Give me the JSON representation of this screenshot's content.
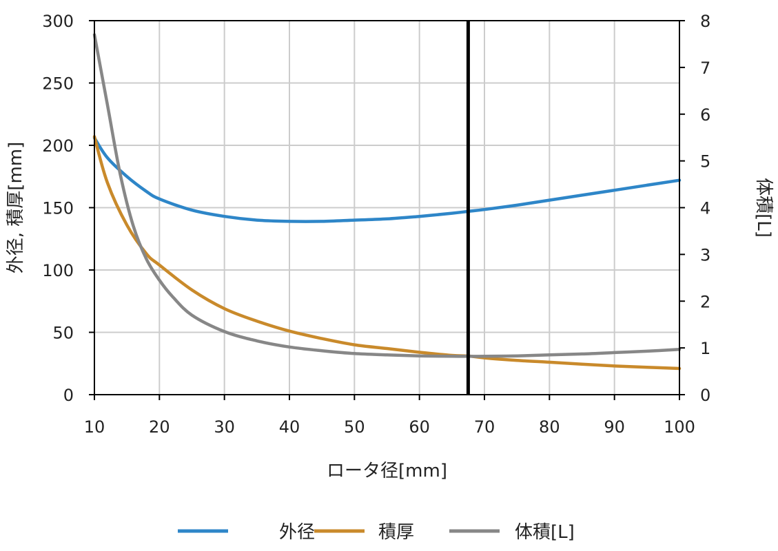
{
  "chart_data": {
    "type": "line",
    "xlabel": "ロータ径[mm]",
    "ylabel_left": "外径, 積厚[mm]",
    "ylabel_right": "体積[L]",
    "xlim": [
      10,
      100
    ],
    "ylim_left": [
      0,
      300
    ],
    "ylim_right": [
      0,
      8
    ],
    "x_ticks": [
      10,
      20,
      30,
      40,
      50,
      60,
      70,
      80,
      90,
      100
    ],
    "y_left_ticks": [
      0,
      50,
      100,
      150,
      200,
      250,
      300
    ],
    "y_right_ticks": [
      0,
      1,
      2,
      3,
      4,
      5,
      6,
      7,
      8
    ],
    "grid": true,
    "vertical_marker_x": 67.5,
    "legend_position": "bottom",
    "colors": {
      "外径": "#2e86c8",
      "積厚": "#c98a2b",
      "体積[L]": "#878787",
      "marker": "#000000",
      "grid": "#cccccc"
    },
    "series": [
      {
        "name": "外径",
        "axis": "left",
        "x": [
          10,
          12,
          15,
          18,
          20,
          25,
          30,
          35,
          40,
          45,
          50,
          55,
          60,
          65,
          67.5,
          70,
          75,
          80,
          85,
          90,
          95,
          100
        ],
        "values": [
          206,
          190,
          175,
          163,
          157,
          148,
          143,
          140,
          139,
          139,
          140,
          141,
          143,
          145.5,
          147,
          148.5,
          152,
          156,
          160,
          164,
          168,
          172
        ]
      },
      {
        "name": "積厚",
        "axis": "left",
        "x": [
          10,
          12,
          15,
          18,
          20,
          25,
          30,
          35,
          40,
          45,
          50,
          55,
          60,
          65,
          67.5,
          70,
          75,
          80,
          85,
          90,
          95,
          100
        ],
        "values": [
          207,
          170,
          136,
          113,
          104,
          84,
          69,
          59,
          51,
          45,
          40,
          37,
          34,
          31.5,
          31,
          29.5,
          27.5,
          26,
          24.5,
          23,
          22,
          21
        ]
      },
      {
        "name": "体積[L]",
        "axis": "right",
        "x": [
          10,
          12,
          14,
          16,
          18,
          20,
          22,
          25,
          30,
          35,
          40,
          45,
          50,
          55,
          60,
          65,
          67.5,
          70,
          75,
          80,
          85,
          90,
          95,
          100
        ],
        "values": [
          7.7,
          6.2,
          4.7,
          3.6,
          2.9,
          2.45,
          2.1,
          1.7,
          1.35,
          1.15,
          1.02,
          0.94,
          0.88,
          0.85,
          0.83,
          0.82,
          0.82,
          0.82,
          0.83,
          0.85,
          0.87,
          0.9,
          0.93,
          0.97
        ]
      }
    ]
  }
}
